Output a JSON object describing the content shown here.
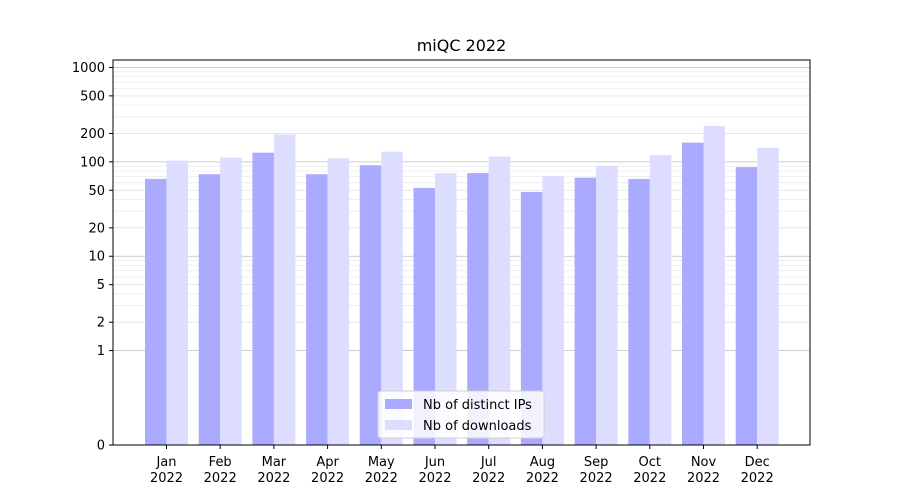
{
  "chart_data": {
    "type": "bar",
    "title": "miQC 2022",
    "xlabel": "",
    "ylabel": "",
    "yscale": "symlog",
    "ylim": [
      0,
      1200
    ],
    "yticks": [
      0,
      1,
      2,
      5,
      10,
      20,
      50,
      100,
      200,
      500,
      1000
    ],
    "categories": [
      [
        "Jan",
        "2022"
      ],
      [
        "Feb",
        "2022"
      ],
      [
        "Mar",
        "2022"
      ],
      [
        "Apr",
        "2022"
      ],
      [
        "May",
        "2022"
      ],
      [
        "Jun",
        "2022"
      ],
      [
        "Jul",
        "2022"
      ],
      [
        "Aug",
        "2022"
      ],
      [
        "Sep",
        "2022"
      ],
      [
        "Oct",
        "2022"
      ],
      [
        "Nov",
        "2022"
      ],
      [
        "Dec",
        "2022"
      ]
    ],
    "series": [
      {
        "name": "Nb of distinct IPs",
        "color": "#aaaaff",
        "values": [
          66,
          74,
          125,
          74,
          92,
          53,
          76,
          48,
          68,
          66,
          160,
          88
        ]
      },
      {
        "name": "Nb of downloads",
        "color": "#ddddff",
        "values": [
          103,
          111,
          195,
          109,
          128,
          76,
          114,
          71,
          91,
          118,
          240,
          141
        ]
      }
    ],
    "grid": true,
    "legend": "lower-center"
  }
}
